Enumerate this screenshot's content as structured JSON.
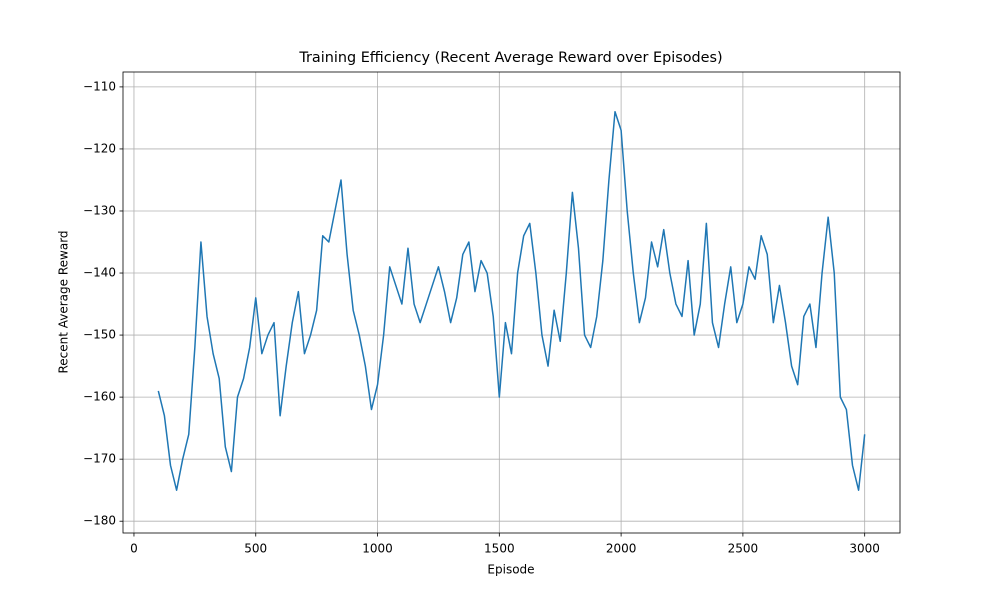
{
  "chart_data": {
    "type": "line",
    "title": "Training Efficiency (Recent Average Reward over Episodes)",
    "xlabel": "Episode",
    "ylabel": "Recent Average Reward",
    "x": [
      100,
      125,
      150,
      175,
      200,
      225,
      250,
      275,
      300,
      325,
      350,
      375,
      400,
      425,
      450,
      475,
      500,
      525,
      550,
      575,
      600,
      625,
      650,
      675,
      700,
      725,
      750,
      775,
      800,
      825,
      850,
      875,
      900,
      925,
      950,
      975,
      1000,
      1025,
      1050,
      1075,
      1100,
      1125,
      1150,
      1175,
      1200,
      1225,
      1250,
      1275,
      1300,
      1325,
      1350,
      1375,
      1400,
      1425,
      1450,
      1475,
      1500,
      1525,
      1550,
      1575,
      1600,
      1625,
      1650,
      1675,
      1700,
      1725,
      1750,
      1775,
      1800,
      1825,
      1850,
      1875,
      1900,
      1925,
      1950,
      1975,
      2000,
      2025,
      2050,
      2075,
      2100,
      2125,
      2150,
      2175,
      2200,
      2225,
      2250,
      2275,
      2300,
      2325,
      2350,
      2375,
      2400,
      2425,
      2450,
      2475,
      2500,
      2525,
      2550,
      2575,
      2600,
      2625,
      2650,
      2675,
      2700,
      2725,
      2750,
      2775,
      2800,
      2825,
      2850,
      2875,
      2900,
      2925,
      2950,
      2975,
      3000
    ],
    "series": [
      {
        "name": "Recent Average Reward",
        "color": "#1f77b4",
        "values": [
          -159,
          -163,
          -171,
          -175,
          -170,
          -166,
          -152,
          -135,
          -147,
          -153,
          -157,
          -168,
          -172,
          -160,
          -157,
          -152,
          -144,
          -153,
          -150,
          -148,
          -163,
          -155,
          -148,
          -143,
          -153,
          -150,
          -146,
          -134,
          -135,
          -130,
          -125,
          -137,
          -146,
          -150,
          -155,
          -162,
          -158,
          -150,
          -139,
          -142,
          -145,
          -136,
          -145,
          -148,
          -145,
          -142,
          -139,
          -143,
          -148,
          -144,
          -137,
          -135,
          -143,
          -138,
          -140,
          -147,
          -160,
          -148,
          -153,
          -140,
          -134,
          -132,
          -140,
          -150,
          -155,
          -146,
          -151,
          -140,
          -127,
          -136,
          -150,
          -152,
          -147,
          -138,
          -125,
          -114,
          -117,
          -130,
          -140,
          -148,
          -144,
          -135,
          -139,
          -133,
          -140,
          -145,
          -147,
          -138,
          -150,
          -145,
          -132,
          -148,
          -152,
          -145,
          -139,
          -148,
          -145,
          -139,
          -141,
          -134,
          -137,
          -148,
          -142,
          -148,
          -155,
          -158,
          -147,
          -145,
          -152,
          -140,
          -131,
          -140,
          -160,
          -162,
          -171,
          -175,
          -166
        ]
      }
    ],
    "xlim": [
      -45,
      3145
    ],
    "ylim": [
      -181.9,
      -107.6
    ],
    "xticks": [
      0,
      500,
      1000,
      1500,
      2000,
      2500,
      3000
    ],
    "yticks": [
      {
        "value": -180,
        "label": "−180"
      },
      {
        "value": -170,
        "label": "−170"
      },
      {
        "value": -160,
        "label": "−160"
      },
      {
        "value": -150,
        "label": "−150"
      },
      {
        "value": -140,
        "label": "−140"
      },
      {
        "value": -130,
        "label": "−130"
      },
      {
        "value": -120,
        "label": "−120"
      },
      {
        "value": -110,
        "label": "−110"
      }
    ],
    "grid": true
  }
}
